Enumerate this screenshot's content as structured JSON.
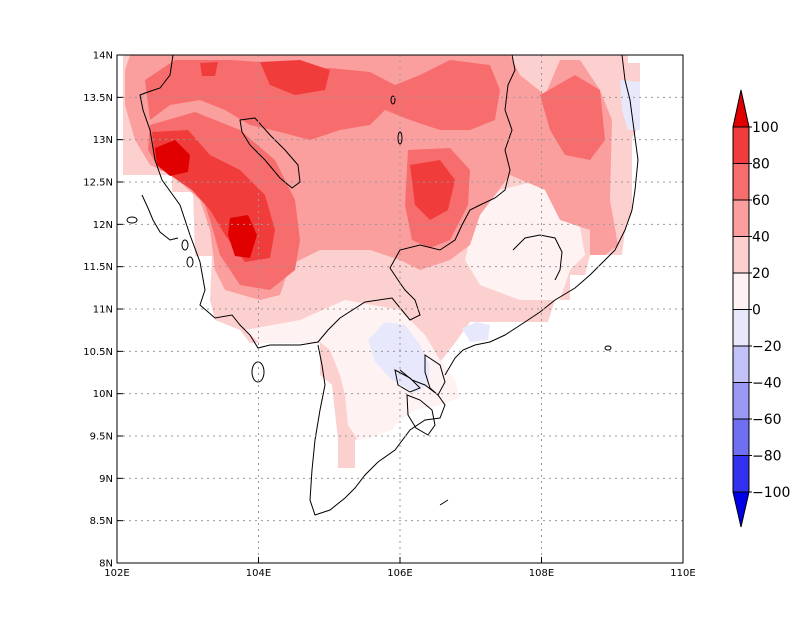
{
  "chart_data": {
    "type": "heatmap",
    "title": "",
    "xlabel": "",
    "ylabel": "",
    "x_range": [
      102,
      110
    ],
    "y_range": [
      8,
      14
    ],
    "x_ticks": [
      "102E",
      "104E",
      "106E",
      "108E",
      "110E"
    ],
    "y_ticks": [
      "8N",
      "8.5N",
      "9N",
      "9.5N",
      "10N",
      "10.5N",
      "11N",
      "11.5N",
      "12N",
      "12.5N",
      "13N",
      "13.5N",
      "14N"
    ],
    "grid": true,
    "colorbar": {
      "placement": "right",
      "labels": [
        "100",
        "80",
        "60",
        "40",
        "20",
        "0",
        "−20",
        "−40",
        "−60",
        "−80",
        "−100"
      ],
      "colors": [
        "#e00000",
        "#f13c3c",
        "#f76d6d",
        "#fb9e9e",
        "#fdd0d0",
        "#fff2f2",
        "#e8e8fc",
        "#c2c2f8",
        "#9a9af5",
        "#6f6ff2",
        "#3030ee",
        "#0000e8"
      ]
    }
  }
}
